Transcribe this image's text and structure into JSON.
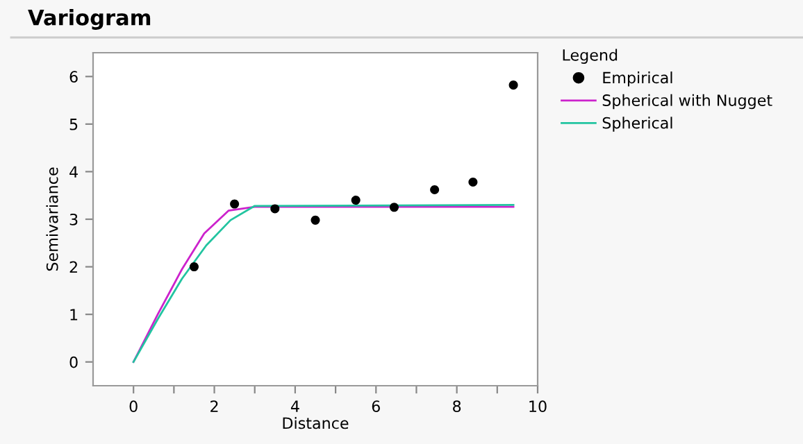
{
  "chart_data": {
    "type": "scatter",
    "title": "Variogram",
    "xlabel": "Distance",
    "ylabel": "Semivariance",
    "legend_title": "Legend",
    "legend": "right",
    "xlim": [
      -1,
      10
    ],
    "ylim": [
      -0.5,
      6.5
    ],
    "xticks": [
      0,
      {
        "value": 1,
        "label": null
      },
      2,
      {
        "value": 3,
        "label": null
      },
      4,
      {
        "value": 5,
        "label": null
      },
      6,
      {
        "value": 7,
        "label": null
      },
      8,
      {
        "value": 9,
        "label": null
      },
      10
    ],
    "yticks": [
      0,
      1,
      2,
      3,
      4,
      5,
      6
    ],
    "grid": false,
    "series": [
      {
        "name": "Empirical",
        "marker": "circle",
        "color": "#000000",
        "x": [
          1.5,
          2.5,
          3.5,
          4.5,
          5.5,
          6.45,
          7.45,
          8.4,
          9.4
        ],
        "values": [
          2.0,
          3.32,
          3.22,
          2.98,
          3.4,
          3.25,
          3.62,
          3.78,
          5.82
        ]
      },
      {
        "name": "Spherical with Nugget",
        "type": "line",
        "color": "#cc22cc",
        "x": [
          0,
          0.6,
          1.2,
          1.75,
          2.35,
          3.0,
          9.4
        ],
        "values": [
          0,
          1.0,
          1.95,
          2.7,
          3.18,
          3.26,
          3.26
        ]
      },
      {
        "name": "Spherical",
        "type": "line",
        "color": "#22c4a0",
        "x": [
          0,
          0.6,
          1.2,
          1.8,
          2.4,
          3.0,
          9.4
        ],
        "values": [
          0,
          0.9,
          1.75,
          2.45,
          2.98,
          3.28,
          3.3
        ]
      }
    ]
  }
}
